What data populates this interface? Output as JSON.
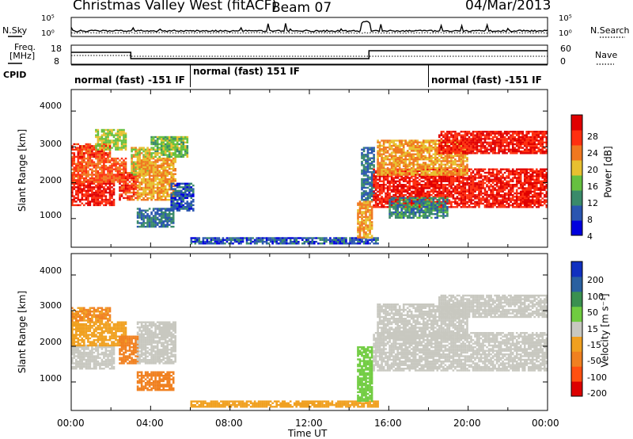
{
  "header": {
    "title": "Christmas Valley West (fitACF)",
    "beam": "Beam 07",
    "date": "04/Mar/2013"
  },
  "noise_panel": {
    "left_label": "N.Sky",
    "right_label": "N.Search",
    "left_ticks": [
      "10^5",
      "10^0"
    ],
    "right_ticks": [
      "10^5",
      "10^0"
    ]
  },
  "freq_panel": {
    "left_label_top": "Freq.",
    "left_label_bottom": "[MHz]",
    "right_label": "Nave",
    "left_ticks": [
      "18",
      "8"
    ],
    "right_ticks": [
      "60",
      "0"
    ]
  },
  "cpid": {
    "label": "CPID",
    "segments": [
      {
        "start_hour": 0,
        "end_hour": 6,
        "label": "normal (fast) -151 IF"
      },
      {
        "start_hour": 6,
        "end_hour": 18,
        "label": "normal (fast) 151 IF"
      },
      {
        "start_hour": 18,
        "end_hour": 24,
        "label": "normal (fast) -151 IF"
      }
    ]
  },
  "colorbars": {
    "power": {
      "label": "Power [dB]",
      "ticks": [
        "28",
        "24",
        "20",
        "16",
        "12",
        "8",
        "4"
      ],
      "colors": [
        "#0000dd",
        "#2a55b0",
        "#3a8a6a",
        "#66c040",
        "#e8c030",
        "#f07820",
        "#ff3010",
        "#e00000"
      ]
    },
    "velocity": {
      "label": "Velocity [m s⁻¹]",
      "ticks": [
        "200",
        "100",
        "50",
        "15",
        "-15",
        "-50",
        "-100",
        "-200"
      ],
      "colors": [
        "#dd0000",
        "#ff5010",
        "#f08020",
        "#f0a020",
        "#c8c8c0",
        "#70cc40",
        "#3a9050",
        "#2a60a0",
        "#1030c0"
      ]
    }
  },
  "chart_data": [
    {
      "type": "heatmap",
      "ylabel": "Slant Range [km]",
      "yticks": [
        "4000",
        "3000",
        "2000",
        "1000"
      ],
      "ylim": [
        200,
        4600
      ],
      "xlim": [
        0,
        24
      ],
      "quantity": "Power [dB]",
      "regions": [
        {
          "t": [
            0.0,
            2.2
          ],
          "r": [
            1350,
            2050
          ],
          "value": 28
        },
        {
          "t": [
            0.0,
            2.8
          ],
          "r": [
            2000,
            2700
          ],
          "value": 24
        },
        {
          "t": [
            0.0,
            2.0
          ],
          "r": [
            2700,
            3100
          ],
          "value": 26
        },
        {
          "t": [
            1.2,
            2.8
          ],
          "r": [
            2900,
            3500
          ],
          "value": 16
        },
        {
          "t": [
            2.4,
            3.4
          ],
          "r": [
            1500,
            2300
          ],
          "value": 26
        },
        {
          "t": [
            3.0,
            4.0
          ],
          "r": [
            2200,
            3000
          ],
          "value": 18
        },
        {
          "t": [
            3.3,
            5.3
          ],
          "r": [
            1500,
            2700
          ],
          "value": 20
        },
        {
          "t": [
            4.0,
            5.9
          ],
          "r": [
            2700,
            3300
          ],
          "value": 14
        },
        {
          "t": [
            3.3,
            5.2
          ],
          "r": [
            750,
            1300
          ],
          "value": 8
        },
        {
          "t": [
            5.0,
            6.2
          ],
          "r": [
            1200,
            2000
          ],
          "value": 6
        },
        {
          "t": [
            6.0,
            15.5
          ],
          "r": [
            280,
            480
          ],
          "value": 6
        },
        {
          "t": [
            14.4,
            15.2
          ],
          "r": [
            450,
            1500
          ],
          "value": 20
        },
        {
          "t": [
            14.6,
            15.3
          ],
          "r": [
            1500,
            3000
          ],
          "value": 8
        },
        {
          "t": [
            15.2,
            24.0
          ],
          "r": [
            1300,
            2400
          ],
          "value": 28
        },
        {
          "t": [
            15.4,
            20.0
          ],
          "r": [
            2200,
            3200
          ],
          "value": 20
        },
        {
          "t": [
            16.0,
            19.0
          ],
          "r": [
            1000,
            1600
          ],
          "value": 10
        },
        {
          "t": [
            18.5,
            24.0
          ],
          "r": [
            2800,
            3450
          ],
          "value": 28
        }
      ]
    },
    {
      "type": "heatmap",
      "ylabel": "Slant Range [km]",
      "yticks": [
        "4000",
        "3000",
        "2000",
        "1000"
      ],
      "ylim": [
        200,
        4600
      ],
      "xlim": [
        0,
        24
      ],
      "xlabel": "Time UT",
      "xticks": [
        "00:00",
        "04:00",
        "08:00",
        "12:00",
        "16:00",
        "20:00",
        "00:00"
      ],
      "quantity": "Velocity [m s⁻¹]",
      "regions": [
        {
          "t": [
            0.0,
            2.2
          ],
          "r": [
            1350,
            2050
          ],
          "value": 0
        },
        {
          "t": [
            0.0,
            2.8
          ],
          "r": [
            2000,
            2700
          ],
          "value": -30
        },
        {
          "t": [
            0.0,
            2.0
          ],
          "r": [
            2700,
            3100
          ],
          "value": -50
        },
        {
          "t": [
            2.4,
            3.4
          ],
          "r": [
            1500,
            2300
          ],
          "value": -60
        },
        {
          "t": [
            3.3,
            5.3
          ],
          "r": [
            1500,
            2700
          ],
          "value": 0
        },
        {
          "t": [
            3.3,
            5.2
          ],
          "r": [
            750,
            1300
          ],
          "value": -60
        },
        {
          "t": [
            6.0,
            15.5
          ],
          "r": [
            280,
            480
          ],
          "value": -40
        },
        {
          "t": [
            14.4,
            15.2
          ],
          "r": [
            450,
            2000
          ],
          "value": 30
        },
        {
          "t": [
            15.2,
            24.0
          ],
          "r": [
            1300,
            2400
          ],
          "value": 0
        },
        {
          "t": [
            15.4,
            20.0
          ],
          "r": [
            2200,
            3200
          ],
          "value": 0
        },
        {
          "t": [
            18.5,
            24.0
          ],
          "r": [
            2800,
            3450
          ],
          "value": 0
        }
      ]
    }
  ]
}
